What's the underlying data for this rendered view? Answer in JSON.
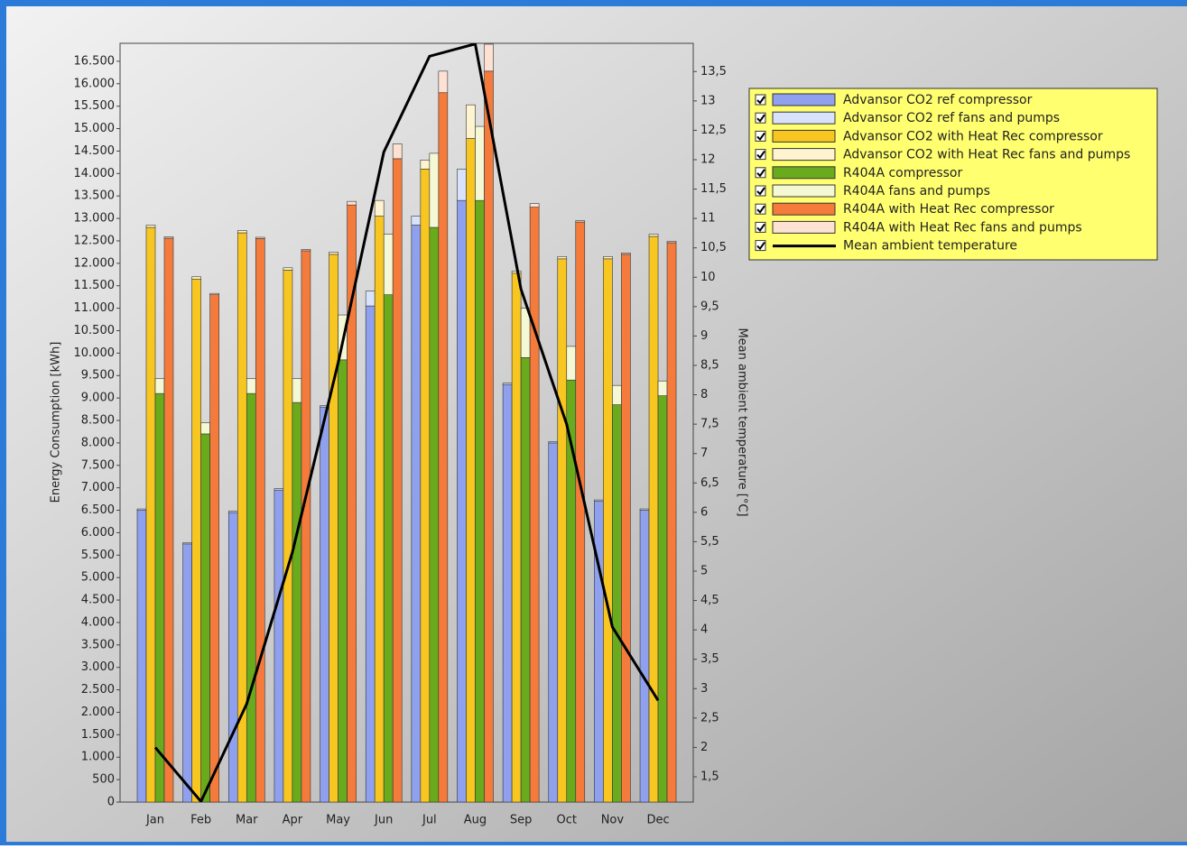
{
  "chart_data": {
    "type": "bar",
    "y_label": "Energy Consumption [kWh]",
    "y2_label": "Mean ambient temperature [°C]",
    "categories": [
      "Jan",
      "Feb",
      "Mar",
      "Apr",
      "May",
      "Jun",
      "Jul",
      "Aug",
      "Sep",
      "Oct",
      "Nov",
      "Dec"
    ],
    "ylim": [
      0,
      16900
    ],
    "yticks": [
      0,
      500,
      {
        "value": 1000,
        "label": "1.000"
      },
      {
        "value": 1500,
        "label": "1.500"
      },
      {
        "value": 2000,
        "label": "2.000"
      },
      {
        "value": 2500,
        "label": "2.500"
      },
      {
        "value": 3000,
        "label": "3.000"
      },
      {
        "value": 3500,
        "label": "3.500"
      },
      {
        "value": 4000,
        "label": "4.000"
      },
      {
        "value": 4500,
        "label": "4.500"
      },
      {
        "value": 5000,
        "label": "5.000"
      },
      {
        "value": 5500,
        "label": "5.500"
      },
      {
        "value": 6000,
        "label": "6.000"
      },
      {
        "value": 6500,
        "label": "6.500"
      },
      {
        "value": 7000,
        "label": "7.000"
      },
      {
        "value": 7500,
        "label": "7.500"
      },
      {
        "value": 8000,
        "label": "8.000"
      },
      {
        "value": 8500,
        "label": "8.500"
      },
      {
        "value": 9000,
        "label": "9.000"
      },
      {
        "value": 9500,
        "label": "9.500"
      },
      {
        "value": 10000,
        "label": "10.000"
      },
      {
        "value": 10500,
        "label": "10.500"
      },
      {
        "value": 11000,
        "label": "11.000"
      },
      {
        "value": 11500,
        "label": "11.500"
      },
      {
        "value": 12000,
        "label": "12.000"
      },
      {
        "value": 12500,
        "label": "12.500"
      },
      {
        "value": 13000,
        "label": "13.000"
      },
      {
        "value": 13500,
        "label": "13.500"
      },
      {
        "value": 14000,
        "label": "14.000"
      },
      {
        "value": 14500,
        "label": "14.500"
      },
      {
        "value": 15000,
        "label": "15.000"
      },
      {
        "value": 15500,
        "label": "15.500"
      },
      {
        "value": 16000,
        "label": "16.000"
      },
      {
        "value": 16500,
        "label": "16.500"
      }
    ],
    "y2lim": [
      1.07,
      13.98
    ],
    "y2ticks": [
      {
        "value": 1.5,
        "label": "1,5"
      },
      2,
      {
        "value": 2.5,
        "label": "2,5"
      },
      3,
      {
        "value": 3.5,
        "label": "3,5"
      },
      4,
      {
        "value": 4.5,
        "label": "4,5"
      },
      5,
      {
        "value": 5.5,
        "label": "5,5"
      },
      6,
      {
        "value": 6.5,
        "label": "6,5"
      },
      7,
      {
        "value": 7.5,
        "label": "7,5"
      },
      8,
      {
        "value": 8.5,
        "label": "8,5"
      },
      9,
      {
        "value": 9.5,
        "label": "9,5"
      },
      10,
      {
        "value": 10.5,
        "label": "10,5"
      },
      11,
      {
        "value": 11.5,
        "label": "11,5"
      },
      12,
      {
        "value": 12.5,
        "label": "12,5"
      },
      13,
      {
        "value": 13.5,
        "label": "13,5"
      }
    ],
    "series": [
      {
        "name": "Advansor CO2 ref compressor",
        "color": "#8ea0ee",
        "values": [
          6500,
          5750,
          6450,
          6950,
          8800,
          11050,
          12850,
          13400,
          9300,
          8000,
          6700,
          6500
        ]
      },
      {
        "name": "Advansor CO2 ref fans and pumps",
        "color": "#d8e2fb",
        "values": [
          30,
          30,
          30,
          30,
          30,
          330,
          200,
          700,
          30,
          30,
          30,
          30
        ]
      },
      {
        "name": "Advansor CO2 with Heat Rec compressor",
        "color": "#f7c621",
        "values": [
          12800,
          11650,
          12680,
          11850,
          12200,
          13050,
          14100,
          14780,
          11780,
          12100,
          12100,
          12600
        ]
      },
      {
        "name": "Advansor CO2 with Heat Rec fans and pumps",
        "color": "#fff4cf",
        "values": [
          50,
          50,
          50,
          50,
          50,
          350,
          200,
          750,
          50,
          50,
          50,
          50
        ]
      },
      {
        "name": "R404A compressor",
        "color": "#6aaa1d",
        "values": [
          9100,
          8200,
          9100,
          8900,
          9850,
          11300,
          12800,
          13400,
          9900,
          9400,
          8850,
          9050
        ]
      },
      {
        "name": "R404A fans and pumps",
        "color": "#f4f8d4",
        "values": [
          330,
          250,
          330,
          530,
          1000,
          1350,
          1650,
          1650,
          1100,
          750,
          430,
          330
        ]
      },
      {
        "name": "R404A with Heat Rec compressor",
        "color": "#f47b3b",
        "values": [
          12560,
          11300,
          12550,
          12280,
          13300,
          14330,
          15800,
          16280,
          13250,
          12920,
          12200,
          12460
        ]
      },
      {
        "name": "R404A with Heat Rec fans and pumps",
        "color": "#fde1d2",
        "values": [
          30,
          30,
          30,
          30,
          80,
          330,
          480,
          600,
          80,
          30,
          30,
          30
        ]
      },
      {
        "name": "Mean ambient temperature",
        "color": "#000000",
        "type": "line",
        "axis": "y2",
        "values": [
          2.0,
          1.08,
          2.74,
          5.32,
          8.54,
          12.13,
          13.76,
          13.97,
          9.8,
          7.5,
          4.05,
          2.8
        ]
      }
    ]
  }
}
